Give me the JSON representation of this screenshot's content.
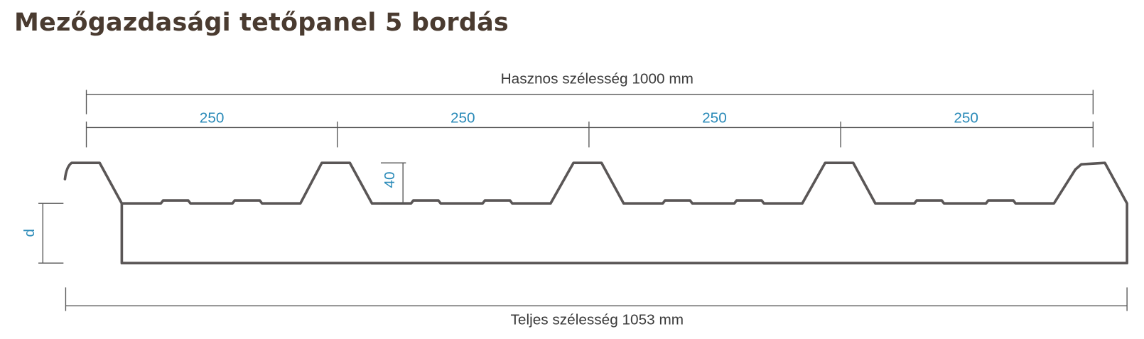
{
  "title": "Mezőgazdasági tetőpanel 5 bordás",
  "dimensions": {
    "useful_width": "Hasznos szélesség 1000 mm",
    "rib_spacing": [
      "250",
      "250",
      "250",
      "250"
    ],
    "rib_height": "40",
    "thickness": "d",
    "total_width": "Teljes szélesség 1053 mm"
  }
}
